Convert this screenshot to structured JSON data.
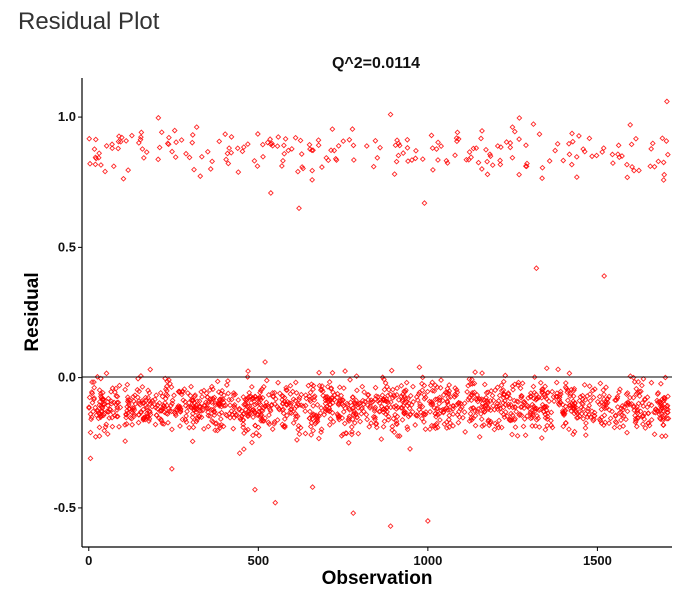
{
  "page": {
    "heading": "Residual Plot"
  },
  "chart_data": {
    "type": "scatter",
    "title": "Q^2=0.0114",
    "xlabel": "Observation",
    "ylabel": "Residual",
    "xlim": [
      -20,
      1720
    ],
    "ylim": [
      -0.65,
      1.15
    ],
    "xticks": [
      0,
      500,
      1000,
      1500
    ],
    "xtick_labels": [
      "0",
      "500",
      "1000",
      "1500"
    ],
    "yticks": [
      -0.5,
      0.0,
      0.5,
      1.0
    ],
    "ytick_labels": [
      "-0.5",
      "0.0",
      "0.5",
      "1.0"
    ],
    "reference_line": {
      "y": 0.0,
      "color": "#000000"
    },
    "grid": false,
    "legend": "none",
    "point_color": "#ff0000",
    "n_observations": 1710,
    "clusters": [
      {
        "description": "upper band",
        "x_range": [
          0,
          1710
        ],
        "y_center": 0.87,
        "y_spread": 0.05
      },
      {
        "description": "lower band",
        "x_range": [
          0,
          1710
        ],
        "y_center": -0.11,
        "y_spread": 0.05
      }
    ],
    "notable_points": [
      {
        "x": 1705,
        "y": 1.06
      },
      {
        "x": 890,
        "y": 1.01
      },
      {
        "x": 620,
        "y": 0.65
      },
      {
        "x": 990,
        "y": 0.67
      },
      {
        "x": 1320,
        "y": 0.42
      },
      {
        "x": 1520,
        "y": 0.39
      },
      {
        "x": 520,
        "y": 0.06
      },
      {
        "x": 975,
        "y": 0.04
      },
      {
        "x": 490,
        "y": -0.43
      },
      {
        "x": 550,
        "y": -0.48
      },
      {
        "x": 780,
        "y": -0.52
      },
      {
        "x": 890,
        "y": -0.57
      },
      {
        "x": 1000,
        "y": -0.55
      },
      {
        "x": 5,
        "y": -0.31
      },
      {
        "x": 245,
        "y": -0.35
      },
      {
        "x": 445,
        "y": -0.29
      },
      {
        "x": 660,
        "y": -0.42
      }
    ]
  }
}
